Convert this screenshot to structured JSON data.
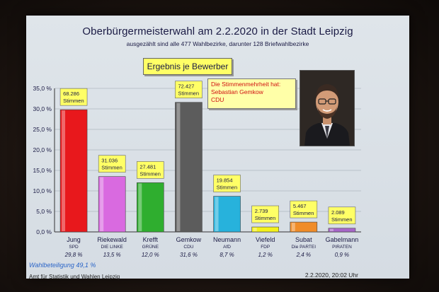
{
  "title": "Oberbürgermeisterwahl am 2.2.2020 in der Stadt Leipzig",
  "subtitle": "ausgezählt sind alle 477 Wahlbezirke, darunter 128 Briefwahlbezirke",
  "box_label": "Ergebnis je Bewerber",
  "majority_note": {
    "line1": "Die Stimmenmehrheit hat:",
    "line2": "Sebastian Gemkow",
    "line3": "CDU"
  },
  "photo": "candidate-portrait",
  "participation": "Wahlbeteiligung 49,1 %",
  "footer_left": "Amt für Statistik und Wahlen Leipzig",
  "footer_right": "2.2.2020, 20:02 Uhr",
  "chart_data": {
    "type": "bar",
    "title": "Ergebnis je Bewerber",
    "ylim": [
      0,
      35
    ],
    "yticks": [
      "0,0 %",
      "5,0 %",
      "10,0 %",
      "15,0 %",
      "20,0 %",
      "25,0 %",
      "30,0 %",
      "35,0 %"
    ],
    "grid": true,
    "categories": [
      "Jung",
      "Riekewald",
      "Krefft",
      "Gemkow",
      "Neumann",
      "Viefeld",
      "Subat",
      "Gabelmann"
    ],
    "parties": [
      "SPD",
      "DIE LINKE",
      "GRÜNE",
      "CDU",
      "AfD",
      "FDP",
      "Die PARTEI",
      "PIRATEN"
    ],
    "values": [
      29.8,
      13.5,
      12.0,
      31.6,
      8.7,
      1.2,
      2.4,
      0.9
    ],
    "value_labels": [
      "29,8 %",
      "13,5 %",
      "12,0 %",
      "31,6 %",
      "8,7 %",
      "1,2 %",
      "2,4 %",
      "0,9 %"
    ],
    "votes": [
      "68.286",
      "31.036",
      "27.481",
      "72.427",
      "19.854",
      "2.739",
      "5.467",
      "2.089"
    ],
    "votes_unit": "Stimmen",
    "colors": [
      "#e8181c",
      "#d96ae0",
      "#2fae2f",
      "#5c5c5c",
      "#27b2dc",
      "#f4f21a",
      "#f08c28",
      "#a766c8"
    ]
  }
}
